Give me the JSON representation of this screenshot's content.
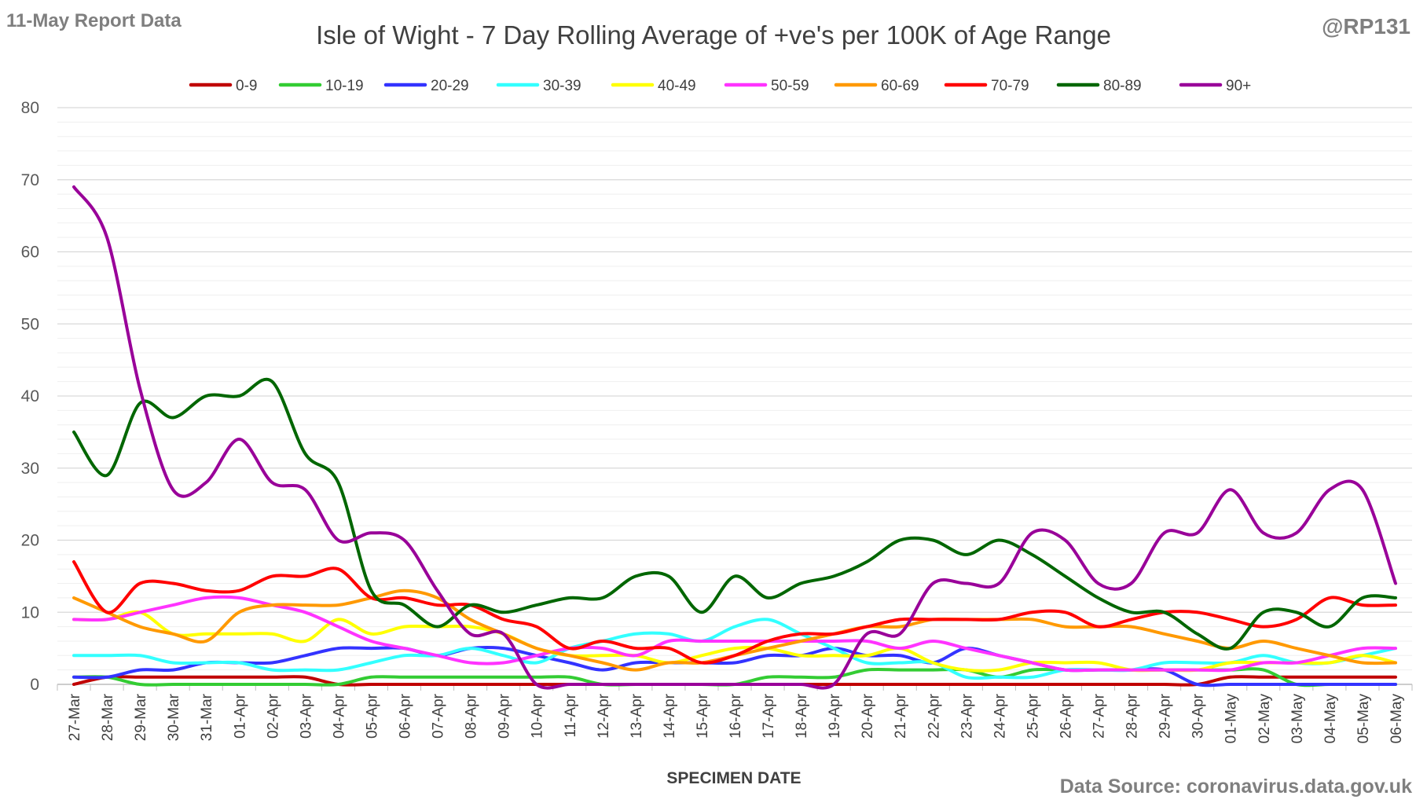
{
  "header": {
    "report_label": "11-May Report Data",
    "handle": "@RP131",
    "source": "Data Source: coronavirus.data.gov.uk"
  },
  "chart_data": {
    "type": "line",
    "title": "Isle of Wight - 7 Day Rolling Average of +ve's per 100K of Age Range",
    "xlabel": "SPECIMEN DATE",
    "ylabel": "",
    "ylim": [
      0,
      80
    ],
    "yticks": [
      0,
      10,
      20,
      30,
      40,
      50,
      60,
      70,
      80
    ],
    "grid": true,
    "legend_position": "top",
    "categories": [
      "27-Mar",
      "28-Mar",
      "29-Mar",
      "30-Mar",
      "31-Mar",
      "01-Apr",
      "02-Apr",
      "03-Apr",
      "04-Apr",
      "05-Apr",
      "06-Apr",
      "07-Apr",
      "08-Apr",
      "09-Apr",
      "10-Apr",
      "11-Apr",
      "12-Apr",
      "13-Apr",
      "14-Apr",
      "15-Apr",
      "16-Apr",
      "17-Apr",
      "18-Apr",
      "19-Apr",
      "20-Apr",
      "21-Apr",
      "22-Apr",
      "23-Apr",
      "24-Apr",
      "25-Apr",
      "26-Apr",
      "27-Apr",
      "28-Apr",
      "29-Apr",
      "30-Apr",
      "01-May",
      "02-May",
      "03-May",
      "04-May",
      "05-May",
      "06-May"
    ],
    "series": [
      {
        "name": "0-9",
        "color": "#C00000",
        "values": [
          0,
          1,
          1,
          1,
          1,
          1,
          1,
          1,
          0,
          0,
          0,
          0,
          0,
          0,
          0,
          0,
          0,
          0,
          0,
          0,
          0,
          0,
          0,
          0,
          0,
          0,
          0,
          0,
          0,
          0,
          0,
          0,
          0,
          0,
          0,
          1,
          1,
          1,
          1,
          1,
          1
        ]
      },
      {
        "name": "10-19",
        "color": "#33CC33",
        "values": [
          1,
          1,
          0,
          0,
          0,
          0,
          0,
          0,
          0,
          1,
          1,
          1,
          1,
          1,
          1,
          1,
          0,
          0,
          0,
          0,
          0,
          1,
          1,
          1,
          2,
          2,
          2,
          2,
          1,
          2,
          2,
          2,
          2,
          2,
          2,
          2,
          2,
          0,
          0,
          0,
          0
        ]
      },
      {
        "name": "20-29",
        "color": "#3333FF",
        "values": [
          1,
          1,
          2,
          2,
          3,
          3,
          3,
          4,
          5,
          5,
          5,
          4,
          5,
          5,
          4,
          3,
          2,
          3,
          3,
          3,
          3,
          4,
          4,
          5,
          4,
          4,
          3,
          5,
          4,
          3,
          2,
          2,
          2,
          2,
          0,
          0,
          0,
          0,
          0,
          0,
          0
        ]
      },
      {
        "name": "30-39",
        "color": "#33FFFF",
        "values": [
          4,
          4,
          4,
          3,
          3,
          3,
          2,
          2,
          2,
          3,
          4,
          4,
          5,
          4,
          3,
          5,
          6,
          7,
          7,
          6,
          8,
          9,
          7,
          5,
          3,
          3,
          3,
          1,
          1,
          1,
          2,
          2,
          2,
          3,
          3,
          3,
          4,
          3,
          3,
          4,
          5
        ]
      },
      {
        "name": "40-49",
        "color": "#FFFF00",
        "values": [
          9,
          9,
          10,
          7,
          7,
          7,
          7,
          6,
          9,
          7,
          8,
          8,
          8,
          7,
          5,
          4,
          4,
          4,
          3,
          4,
          5,
          5,
          4,
          4,
          4,
          5,
          3,
          2,
          2,
          3,
          3,
          3,
          2,
          2,
          2,
          3,
          3,
          3,
          3,
          4,
          3
        ]
      },
      {
        "name": "50-59",
        "color": "#FF33FF",
        "values": [
          9,
          9,
          10,
          11,
          12,
          12,
          11,
          10,
          8,
          6,
          5,
          4,
          3,
          3,
          4,
          5,
          5,
          4,
          6,
          6,
          6,
          6,
          6,
          6,
          6,
          5,
          6,
          5,
          4,
          3,
          2,
          2,
          2,
          2,
          2,
          2,
          3,
          3,
          4,
          5,
          5
        ]
      },
      {
        "name": "60-69",
        "color": "#FF9900",
        "values": [
          12,
          10,
          8,
          7,
          6,
          10,
          11,
          11,
          11,
          12,
          13,
          12,
          9,
          7,
          5,
          4,
          3,
          2,
          3,
          3,
          4,
          5,
          6,
          7,
          8,
          8,
          9,
          9,
          9,
          9,
          8,
          8,
          8,
          7,
          6,
          5,
          6,
          5,
          4,
          3,
          3
        ]
      },
      {
        "name": "70-79",
        "color": "#FF0000",
        "values": [
          17,
          10,
          14,
          14,
          13,
          13,
          15,
          15,
          16,
          12,
          12,
          11,
          11,
          9,
          8,
          5,
          6,
          5,
          5,
          3,
          4,
          6,
          7,
          7,
          8,
          9,
          9,
          9,
          9,
          10,
          10,
          8,
          9,
          10,
          10,
          9,
          8,
          9,
          12,
          11,
          11
        ]
      },
      {
        "name": "80-89",
        "color": "#006600",
        "values": [
          35,
          29,
          39,
          37,
          40,
          40,
          42,
          32,
          28,
          13,
          11,
          8,
          11,
          10,
          11,
          12,
          12,
          15,
          15,
          10,
          15,
          12,
          14,
          15,
          17,
          20,
          20,
          18,
          20,
          18,
          15,
          12,
          10,
          10,
          7,
          5,
          10,
          10,
          8,
          12,
          12
        ]
      },
      {
        "name": "90+",
        "color": "#990099",
        "values": [
          69,
          62,
          41,
          27,
          28,
          34,
          28,
          27,
          20,
          21,
          20,
          13,
          7,
          7,
          0,
          0,
          0,
          0,
          0,
          0,
          0,
          0,
          0,
          0,
          7,
          7,
          14,
          14,
          14,
          21,
          20,
          14,
          14,
          21,
          21,
          27,
          21,
          21,
          27,
          27,
          14
        ]
      }
    ]
  }
}
